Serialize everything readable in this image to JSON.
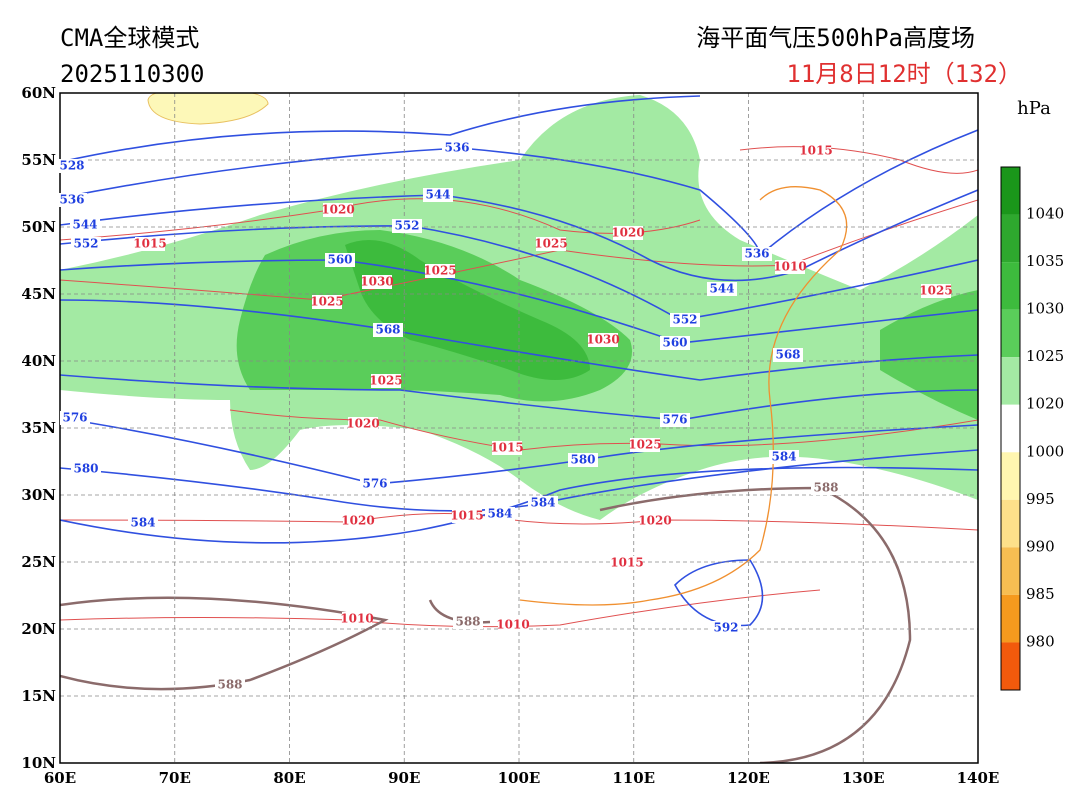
{
  "header": {
    "model": "CMA全球模式",
    "init_time": "2025110300",
    "title": "海平面气压500hPa高度场",
    "valid_time": "11月8日12时（132）"
  },
  "axes": {
    "lon_labels": [
      "60E",
      "70E",
      "80E",
      "90E",
      "100E",
      "110E",
      "120E",
      "130E",
      "140E"
    ],
    "lat_labels": [
      "60N",
      "55N",
      "50N",
      "45N",
      "40N",
      "35N",
      "30N",
      "25N",
      "20N",
      "15N",
      "10N"
    ]
  },
  "colorbar": {
    "unit": "hPa",
    "labels": [
      "1040",
      "1035",
      "1030",
      "1025",
      "1020",
      "1000",
      "995",
      "990",
      "985",
      "980"
    ],
    "colors": [
      "#1a961a",
      "#2ea82e",
      "#3dbb3d",
      "#5acd5a",
      "#a3eaa3",
      "#ffffff",
      "#fff6b0",
      "#fde08a",
      "#f7be52",
      "#f59a1e",
      "#f25a0c"
    ]
  },
  "contour_labels": {
    "height": [
      "528",
      "536",
      "544",
      "552",
      "536",
      "544",
      "552",
      "560",
      "568",
      "576",
      "580",
      "576",
      "584",
      "584",
      "584",
      "580",
      "576",
      "568",
      "560",
      "552",
      "544",
      "536",
      "584",
      "592"
    ],
    "pressure": [
      "1020",
      "1015",
      "1025",
      "1030",
      "1025",
      "1025",
      "1020",
      "1015",
      "1010",
      "1025",
      "1030",
      "1025",
      "1020",
      "1015",
      "1025",
      "1020",
      "1015",
      "1020",
      "1015",
      "1010",
      "1010"
    ],
    "high": [
      "588",
      "588",
      "588"
    ]
  }
}
